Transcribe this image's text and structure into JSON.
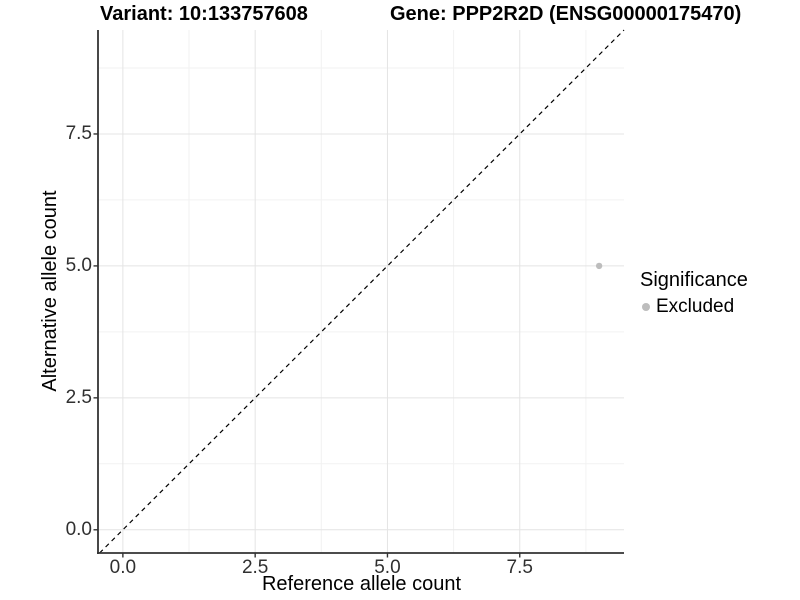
{
  "chart_data": {
    "type": "scatter",
    "titles": {
      "left": "Variant: 10:133757608",
      "right": "Gene: PPP2R2D (ENSG00000175470)"
    },
    "xlabel": "Reference allele count",
    "ylabel": "Alternative allele count",
    "xlim": [
      -0.47,
      9.47
    ],
    "ylim": [
      -0.44,
      9.47
    ],
    "x_ticks": [
      0,
      2.5,
      5,
      7.5
    ],
    "x_tick_labels": [
      "0.0",
      "2.5",
      "5.0",
      "7.5"
    ],
    "y_ticks": [
      0,
      2.5,
      5,
      7.5
    ],
    "y_tick_labels": [
      "0.0",
      "2.5",
      "5.0",
      "7.5"
    ],
    "x_minor_ticks": [
      1.25,
      3.75,
      6.25,
      8.75
    ],
    "y_minor_ticks": [
      1.25,
      3.75,
      6.25,
      8.75
    ],
    "grid": "major+minor",
    "series": [
      {
        "name": "Excluded",
        "color": "#bdbdbd",
        "points": [
          {
            "x": 9,
            "y": 5
          }
        ]
      }
    ],
    "reference_line": {
      "type": "identity",
      "slope": 1,
      "intercept": 0,
      "style": "dashed",
      "color": "#000000"
    },
    "legend": {
      "position": "right",
      "title": "Significance",
      "items": [
        {
          "label": "Excluded",
          "color": "#bdbdbd",
          "marker": "circle"
        }
      ]
    }
  },
  "colors": {
    "background": "#ffffff",
    "axis_line": "#333333",
    "grid_major": "#e4e4e4",
    "grid_minor": "#f2f2f2",
    "tick_label": "#303030",
    "text": "#000000"
  }
}
